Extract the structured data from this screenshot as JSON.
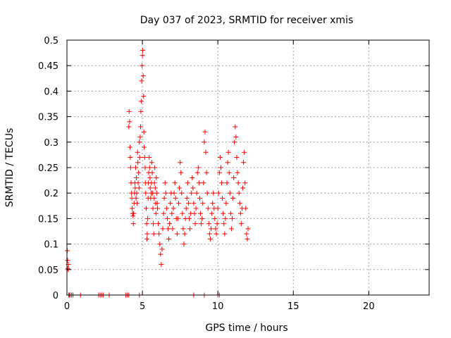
{
  "chart_data": {
    "type": "scatter",
    "title": "Day 037 of 2023, SRMTID for receiver xmis",
    "xlabel": "GPS time / hours",
    "ylabel": "SRMTID / TECUs",
    "xlim": [
      0,
      24
    ],
    "ylim": [
      0,
      0.5
    ],
    "xticks": [
      0,
      5,
      10,
      15,
      20
    ],
    "xtick_labels": [
      "0",
      "5",
      "10",
      "15",
      "20"
    ],
    "yticks": [
      0,
      0.05,
      0.1,
      0.15,
      0.2,
      0.25,
      0.3,
      0.35,
      0.4,
      0.45,
      0.5
    ],
    "ytick_labels": [
      "0",
      "0.05",
      "0.1",
      "0.15",
      "0.2",
      "0.25",
      "0.3",
      "0.35",
      "0.4",
      "0.45",
      "0.5"
    ],
    "grid": true,
    "marker": "+",
    "color": "#ff0000",
    "series": [
      {
        "name": "SRMTID",
        "x": [
          0.02,
          0.04,
          0.06,
          0.08,
          0.1,
          0.12,
          0.15,
          0.2,
          0.3,
          0.4,
          0.9,
          2.1,
          2.2,
          2.3,
          2.4,
          2.8,
          3.9,
          4.0,
          4.1,
          4.8,
          8.4,
          9.1,
          10.0,
          10.1,
          4.1,
          4.12,
          4.15,
          4.18,
          4.2,
          4.22,
          4.25,
          4.28,
          4.3,
          4.32,
          4.35,
          4.38,
          4.4,
          4.42,
          4.45,
          4.48,
          4.5,
          4.52,
          4.55,
          4.58,
          4.6,
          4.62,
          4.65,
          4.68,
          4.7,
          4.72,
          4.75,
          4.78,
          4.8,
          4.82,
          4.85,
          4.88,
          4.9,
          4.92,
          4.95,
          4.98,
          5.0,
          5.02,
          5.05,
          5.08,
          5.1,
          5.12,
          5.15,
          5.18,
          5.2,
          5.22,
          5.25,
          5.28,
          5.3,
          5.32,
          5.35,
          5.38,
          5.4,
          5.42,
          5.45,
          5.48,
          5.5,
          5.52,
          5.55,
          5.58,
          5.6,
          5.62,
          5.65,
          5.68,
          5.7,
          5.72,
          5.75,
          5.78,
          5.8,
          5.82,
          5.85,
          5.88,
          5.9,
          5.92,
          5.95,
          5.98,
          6.0,
          6.05,
          6.1,
          6.15,
          6.2,
          6.25,
          6.3,
          6.35,
          6.4,
          6.45,
          6.5,
          6.55,
          6.6,
          6.65,
          6.7,
          6.75,
          6.8,
          6.85,
          6.9,
          6.95,
          7.0,
          7.05,
          7.1,
          7.15,
          7.2,
          7.25,
          7.3,
          7.35,
          7.4,
          7.45,
          7.5,
          7.55,
          7.6,
          7.65,
          7.7,
          7.75,
          7.8,
          7.85,
          7.9,
          7.95,
          8.0,
          8.05,
          8.1,
          8.15,
          8.2,
          8.25,
          8.3,
          8.35,
          8.4,
          8.45,
          8.5,
          8.55,
          8.6,
          8.65,
          8.7,
          8.75,
          8.8,
          8.85,
          8.9,
          8.95,
          9.0,
          9.05,
          9.1,
          9.15,
          9.2,
          9.25,
          9.3,
          9.35,
          9.4,
          9.45,
          9.5,
          9.55,
          9.6,
          9.65,
          9.7,
          9.75,
          9.8,
          9.85,
          9.9,
          9.95,
          10.0,
          10.05,
          10.1,
          10.15,
          10.2,
          10.25,
          10.3,
          10.35,
          10.4,
          10.45,
          10.5,
          10.55,
          10.6,
          10.65,
          10.7,
          10.75,
          10.8,
          10.85,
          10.9,
          10.95,
          11.0,
          11.05,
          11.1,
          11.15,
          11.2,
          11.25,
          11.3,
          11.35,
          11.4,
          11.45,
          11.5,
          11.55,
          11.6,
          11.65,
          11.7,
          11.75,
          11.8,
          11.85,
          11.9,
          11.95,
          12.0
        ],
        "y": [
          0.087,
          0.068,
          0.052,
          0.05,
          0.06,
          0.0,
          0.0,
          0.0,
          0.0,
          0.0,
          0.0,
          0.0,
          0.0,
          0.0,
          0.0,
          0.0,
          0.0,
          0.0,
          0.0,
          0.0,
          0.0,
          0.0,
          0.0,
          0.0,
          0.33,
          0.36,
          0.34,
          0.29,
          0.27,
          0.25,
          0.22,
          0.2,
          0.19,
          0.17,
          0.16,
          0.155,
          0.14,
          0.16,
          0.18,
          0.2,
          0.22,
          0.21,
          0.25,
          0.19,
          0.23,
          0.2,
          0.18,
          0.28,
          0.26,
          0.22,
          0.24,
          0.21,
          0.3,
          0.27,
          0.31,
          0.33,
          0.36,
          0.38,
          0.42,
          0.45,
          0.47,
          0.48,
          0.43,
          0.39,
          0.32,
          0.29,
          0.27,
          0.25,
          0.22,
          0.2,
          0.17,
          0.14,
          0.11,
          0.12,
          0.15,
          0.19,
          0.22,
          0.24,
          0.27,
          0.25,
          0.23,
          0.21,
          0.19,
          0.2,
          0.22,
          0.26,
          0.24,
          0.2,
          0.17,
          0.14,
          0.12,
          0.19,
          0.22,
          0.25,
          0.21,
          0.18,
          0.16,
          0.23,
          0.2,
          0.18,
          0.17,
          0.14,
          0.12,
          0.1,
          0.08,
          0.06,
          0.09,
          0.13,
          0.16,
          0.19,
          0.22,
          0.2,
          0.17,
          0.15,
          0.13,
          0.11,
          0.14,
          0.18,
          0.2,
          0.16,
          0.13,
          0.17,
          0.2,
          0.22,
          0.19,
          0.15,
          0.12,
          0.15,
          0.18,
          0.21,
          0.26,
          0.24,
          0.2,
          0.16,
          0.13,
          0.1,
          0.12,
          0.15,
          0.17,
          0.19,
          0.22,
          0.18,
          0.15,
          0.13,
          0.16,
          0.2,
          0.23,
          0.21,
          0.18,
          0.16,
          0.14,
          0.17,
          0.2,
          0.24,
          0.25,
          0.22,
          0.19,
          0.16,
          0.14,
          0.15,
          0.18,
          0.22,
          0.3,
          0.32,
          0.28,
          0.24,
          0.2,
          0.17,
          0.14,
          0.12,
          0.11,
          0.13,
          0.16,
          0.18,
          0.2,
          0.17,
          0.15,
          0.13,
          0.12,
          0.14,
          0.17,
          0.2,
          0.24,
          0.27,
          0.25,
          0.22,
          0.19,
          0.16,
          0.14,
          0.12,
          0.15,
          0.18,
          0.22,
          0.26,
          0.28,
          0.24,
          0.2,
          0.16,
          0.13,
          0.15,
          0.19,
          0.23,
          0.3,
          0.33,
          0.31,
          0.27,
          0.24,
          0.22,
          0.2,
          0.18,
          0.16,
          0.14,
          0.17,
          0.21,
          0.26,
          0.28,
          0.22,
          0.17,
          0.12,
          0.11,
          0.13
        ]
      }
    ]
  }
}
